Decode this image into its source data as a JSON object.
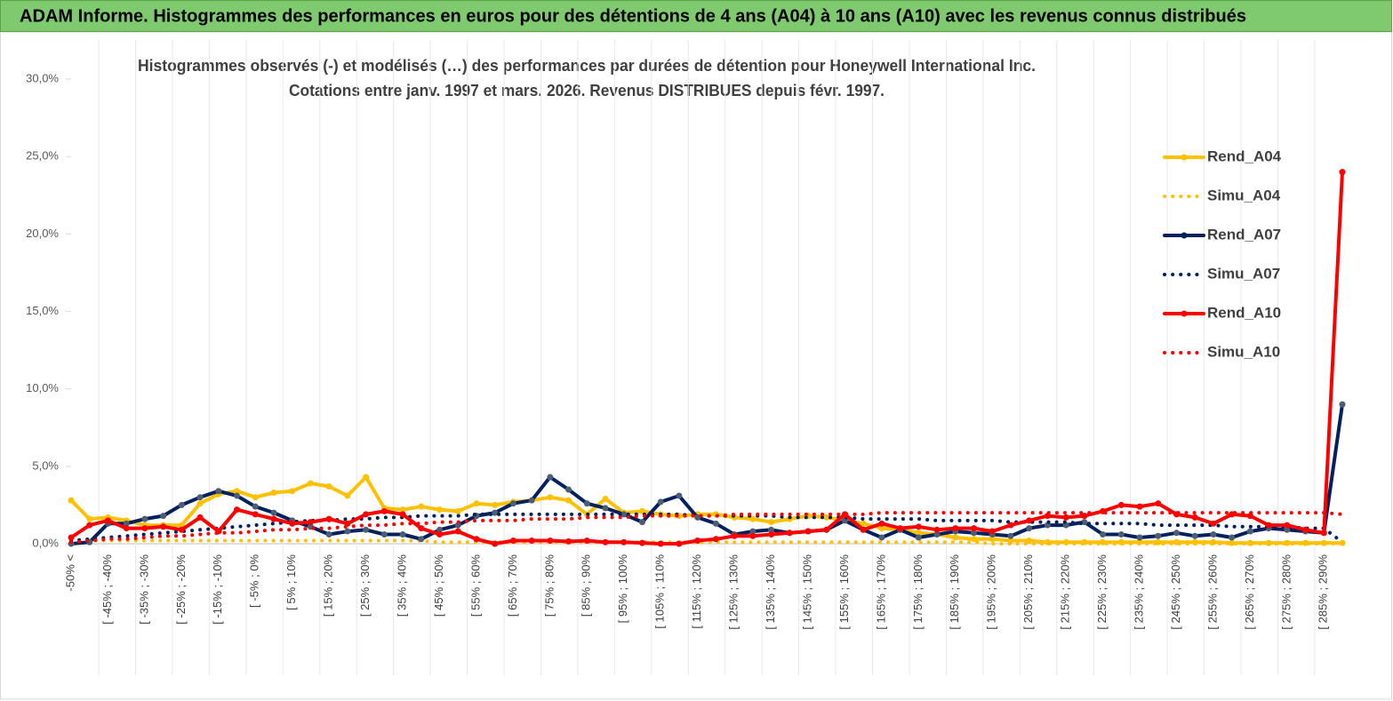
{
  "chart_data": {
    "type": "line",
    "title": "ADAM Informe. Histogrammes des performances en euros pour des détentions de 4 ans (A04) à 10 ans (A10) avec les revenus connus distribués",
    "subtitle": [
      "Histogrammes observés (-) et modélisés (…)  des performances par durées de détention pour Honeywell International Inc.",
      "Cotations entre janv. 1997 et mars. 2026. Revenus DISTRIBUES depuis févr. 1997."
    ],
    "categories": [
      "-50% <",
      null,
      "[ -45% ; -40%",
      null,
      "[ -35% ; -30%",
      null,
      "[ -25% ; -20%",
      null,
      "[ -15% ; -10%",
      null,
      "[ -5% ; 0%",
      null,
      "[ 5% ; 10%",
      null,
      "[ 15% ; 20%",
      null,
      "[ 25% ; 30%",
      null,
      "[ 35% ; 40%",
      null,
      "[ 45% ; 50%",
      null,
      "[ 55% ; 60%",
      null,
      "[ 65% ; 70%",
      null,
      "[ 75% ; 80%",
      null,
      "[ 85% ; 90%",
      null,
      "[ 95% ; 100%",
      null,
      "[ 105% ; 110%",
      null,
      "[ 115% ; 120%",
      null,
      "[ 125% ; 130%",
      null,
      "[ 135% ; 140%",
      null,
      "[ 145% ; 150%",
      null,
      "[ 155% ; 160%",
      null,
      "[ 165% ; 170%",
      null,
      "[ 175% ; 180%",
      null,
      "[ 185% ; 190%",
      null,
      "[ 195% ; 200%",
      null,
      "[ 205% ; 210%",
      null,
      "[ 215% ; 220%",
      null,
      "[ 225% ; 230%",
      null,
      "[ 235% ; 240%",
      null,
      "[ 245% ; 250%",
      null,
      "[ 255% ; 260%",
      null,
      "[ 265% ; 270%",
      null,
      "[ 275% ; 280%",
      null,
      "[ 285% ; 290%",
      null
    ],
    "series": [
      {
        "name": "Rend_A04",
        "color": "#ffc000",
        "style": "solid",
        "values": [
          2.8,
          1.6,
          1.7,
          1.5,
          1.2,
          1.2,
          1.2,
          2.6,
          3.2,
          3.4,
          3.0,
          3.3,
          3.4,
          3.9,
          3.7,
          3.1,
          4.3,
          2.3,
          2.2,
          2.4,
          2.2,
          2.1,
          2.6,
          2.5,
          2.7,
          2.8,
          3.0,
          2.8,
          1.9,
          2.9,
          2.0,
          2.1,
          1.9,
          1.8,
          1.9,
          1.9,
          1.7,
          1.6,
          1.4,
          1.6,
          1.8,
          1.7,
          1.5,
          1.3,
          1.0,
          0.9,
          0.7,
          0.6,
          0.4,
          0.3,
          0.3,
          0.2,
          0.2,
          0.1,
          0.1,
          0.1,
          0.1,
          0.1,
          0.1,
          0.1,
          0.1,
          0.1,
          0.1,
          0.05,
          0.05,
          0.05,
          0.05,
          0.05,
          0.05,
          0.05
        ]
      },
      {
        "name": "Simu_A04",
        "color": "#ffc000",
        "style": "dotted",
        "values": [
          0.2,
          0.2,
          0.2,
          0.2,
          0.2,
          0.2,
          0.2,
          0.2,
          0.2,
          0.2,
          0.2,
          0.2,
          0.2,
          0.2,
          0.2,
          0.2,
          0.2,
          0.2,
          0.2,
          0.2,
          0.1,
          0.1,
          0.1,
          0.1,
          0.1,
          0.1,
          0.1,
          0.1,
          0.1,
          0.1,
          0.1,
          0.1,
          0.1,
          0.1,
          0.1,
          0.1,
          0.1,
          0.1,
          0.1,
          0.1,
          0.1,
          0.1,
          0.1,
          0.1,
          0.1,
          0.1,
          0.1,
          0.1,
          0.1,
          0.1,
          0.0,
          0.0,
          0.0,
          0.0,
          0.0,
          0.0,
          0.0,
          0.0,
          0.0,
          0.0,
          0.0,
          0.0,
          0.0,
          0.0,
          0.0,
          0.0,
          0.0,
          0.0,
          0.0,
          0.0
        ]
      },
      {
        "name": "Rend_A07",
        "color": "#002060",
        "style": "solid",
        "values": [
          0.0,
          0.1,
          1.3,
          1.3,
          1.6,
          1.8,
          2.5,
          3.0,
          3.4,
          3.1,
          2.4,
          2.0,
          1.5,
          1.1,
          0.6,
          0.8,
          0.9,
          0.6,
          0.6,
          0.3,
          0.9,
          1.2,
          1.8,
          2.0,
          2.6,
          2.8,
          4.3,
          3.5,
          2.6,
          2.3,
          1.9,
          1.4,
          2.7,
          3.1,
          1.7,
          1.3,
          0.6,
          0.8,
          0.9,
          0.7,
          0.8,
          0.9,
          1.5,
          0.9,
          0.4,
          0.9,
          0.4,
          0.6,
          0.8,
          0.7,
          0.6,
          0.5,
          1.0,
          1.2,
          1.2,
          1.4,
          0.6,
          0.6,
          0.4,
          0.5,
          0.7,
          0.5,
          0.6,
          0.4,
          0.8,
          1.0,
          0.9,
          0.8,
          0.7,
          9.0
        ]
      },
      {
        "name": "Simu_A07",
        "color": "#002060",
        "style": "dotted",
        "values": [
          0.2,
          0.3,
          0.4,
          0.5,
          0.6,
          0.7,
          0.8,
          0.9,
          1.0,
          1.1,
          1.2,
          1.3,
          1.4,
          1.5,
          1.5,
          1.6,
          1.6,
          1.7,
          1.7,
          1.8,
          1.8,
          1.8,
          1.9,
          1.9,
          1.9,
          1.9,
          1.9,
          1.9,
          1.9,
          1.9,
          1.9,
          1.9,
          1.9,
          1.9,
          1.8,
          1.8,
          1.8,
          1.8,
          1.8,
          1.7,
          1.7,
          1.7,
          1.7,
          1.6,
          1.6,
          1.6,
          1.6,
          1.5,
          1.5,
          1.5,
          1.5,
          1.4,
          1.4,
          1.4,
          1.4,
          1.3,
          1.3,
          1.3,
          1.3,
          1.2,
          1.2,
          1.2,
          1.2,
          1.1,
          1.1,
          1.1,
          1.1,
          1.0,
          1.0,
          0.1
        ]
      },
      {
        "name": "Rend_A10",
        "color": "#ff0000",
        "style": "solid",
        "values": [
          0.4,
          1.2,
          1.5,
          1.0,
          1.0,
          1.1,
          0.9,
          1.7,
          0.8,
          2.2,
          1.9,
          1.6,
          1.3,
          1.4,
          1.6,
          1.3,
          1.9,
          2.1,
          1.9,
          1.0,
          0.6,
          0.8,
          0.3,
          0.0,
          0.2,
          0.2,
          0.2,
          0.15,
          0.2,
          0.1,
          0.1,
          0.05,
          0.0,
          0.0,
          0.2,
          0.3,
          0.5,
          0.5,
          0.6,
          0.7,
          0.8,
          0.9,
          1.9,
          0.9,
          1.3,
          1.0,
          1.1,
          0.9,
          1.0,
          1.0,
          0.8,
          1.2,
          1.5,
          1.8,
          1.7,
          1.8,
          2.1,
          2.5,
          2.4,
          2.6,
          1.9,
          1.7,
          1.3,
          1.9,
          1.8,
          1.2,
          1.2,
          0.9,
          0.7,
          24.0
        ]
      },
      {
        "name": "Simu_A10",
        "color": "#ff0000",
        "style": "dotted",
        "values": [
          0.1,
          0.2,
          0.3,
          0.3,
          0.4,
          0.5,
          0.5,
          0.6,
          0.7,
          0.7,
          0.8,
          0.9,
          0.9,
          1.0,
          1.0,
          1.1,
          1.2,
          1.2,
          1.3,
          1.3,
          1.4,
          1.4,
          1.5,
          1.5,
          1.5,
          1.6,
          1.6,
          1.6,
          1.7,
          1.7,
          1.7,
          1.8,
          1.8,
          1.8,
          1.8,
          1.8,
          1.9,
          1.9,
          1.9,
          1.9,
          1.9,
          1.9,
          1.9,
          1.9,
          2.0,
          2.0,
          2.0,
          2.0,
          2.0,
          2.0,
          2.0,
          2.0,
          2.0,
          2.0,
          2.0,
          2.0,
          2.0,
          2.0,
          2.0,
          2.0,
          2.0,
          2.0,
          2.0,
          2.0,
          2.0,
          2.0,
          2.0,
          2.0,
          2.0,
          1.9
        ]
      }
    ],
    "ylim": [
      0,
      30
    ],
    "yticks": [
      {
        "value": 0,
        "label": "0,0%"
      },
      {
        "value": 5,
        "label": "5,0%"
      },
      {
        "value": 10,
        "label": "10,0%"
      },
      {
        "value": 15,
        "label": "15,0%"
      },
      {
        "value": 20,
        "label": "20,0%"
      },
      {
        "value": 25,
        "label": "25,0%"
      },
      {
        "value": 30,
        "label": "30,0%"
      }
    ],
    "grid": "x",
    "legend": "right"
  }
}
